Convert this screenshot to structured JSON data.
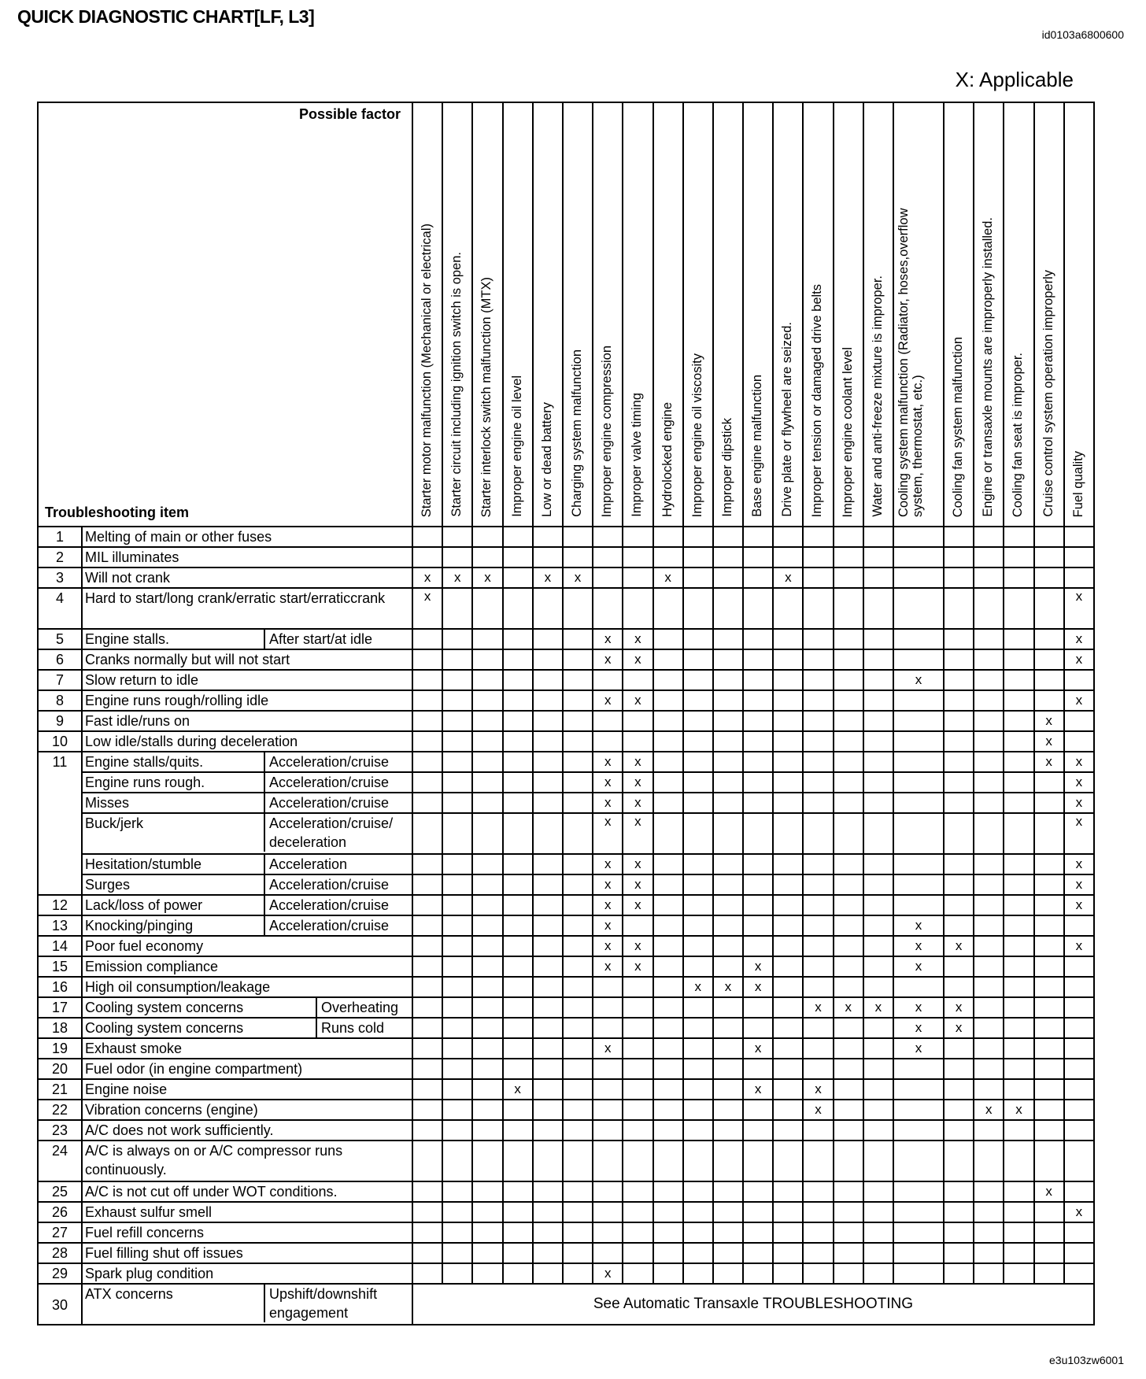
{
  "title": "QUICK DIAGNOSTIC CHART[LF, L3]",
  "doc_id": "id0103a6800600",
  "legend": "X: Applicable",
  "figure_id": "e3u103zw6001",
  "mark": "x",
  "header": {
    "possible_factor": "Possible factor",
    "troubleshooting_item": "Troubleshooting item"
  },
  "factors": [
    "Starter motor malfunction (Mechanical or electrical)",
    "Starter circuit including ignition switch is open.",
    "Starter interlock switch malfunction (MTX)",
    "Improper engine oil level",
    "Low or dead battery",
    "Charging system malfunction",
    "Improper engine compression",
    "Improper valve timing",
    "Hydrolocked engine",
    "Improper engine oil viscosity",
    "Improper dipstick",
    "Base engine malfunction",
    "Drive plate or flywheel are seized.",
    "Improper tension or damaged drive belts",
    "Improper engine coolant level",
    "Water and anti-freeze mixture is improper.",
    "Cooling system malfunction (Radiator, hoses,overflow system, thermostat, etc.)",
    "Cooling fan system malfunction",
    "Engine or transaxle mounts are improperly installed.",
    "Cooling fan seat is improper.",
    "Cruise control system operation improperly",
    "Fuel quality"
  ],
  "rows": [
    {
      "num": "1",
      "item": "Melting of main or other fuses",
      "sub": "",
      "marks": []
    },
    {
      "num": "2",
      "item": "MIL illuminates",
      "sub": "",
      "marks": []
    },
    {
      "num": "3",
      "item": "Will not crank",
      "sub": "",
      "marks": [
        0,
        1,
        2,
        4,
        5,
        8,
        12
      ]
    },
    {
      "num": "4",
      "item": "Hard to start/long crank/erratic start/erraticcrank",
      "sub": "",
      "marks": [
        0,
        21
      ]
    },
    {
      "num": "5",
      "item": "Engine stalls.",
      "sub": "After start/at idle",
      "marks": [
        6,
        7,
        21
      ]
    },
    {
      "num": "6",
      "item": "Cranks normally but will not start",
      "sub": "",
      "marks": [
        6,
        7,
        21
      ]
    },
    {
      "num": "7",
      "item": "Slow return to idle",
      "sub": "",
      "marks": [
        16
      ]
    },
    {
      "num": "8",
      "item": "Engine runs rough/rolling idle",
      "sub": "",
      "marks": [
        6,
        7,
        21
      ]
    },
    {
      "num": "9",
      "item": "Fast idle/runs on",
      "sub": "",
      "marks": [
        20
      ]
    },
    {
      "num": "10",
      "item": "Low idle/stalls during deceleration",
      "sub": "",
      "marks": [
        20
      ]
    },
    {
      "num": "11",
      "item": "Engine stalls/quits.",
      "sub": "Acceleration/cruise",
      "marks": [
        6,
        7,
        20,
        21
      ]
    },
    {
      "num": "",
      "item": "Engine runs rough.",
      "sub": "Acceleration/cruise",
      "marks": [
        6,
        7,
        21
      ]
    },
    {
      "num": "",
      "item": "Misses",
      "sub": "Acceleration/cruise",
      "marks": [
        6,
        7,
        21
      ]
    },
    {
      "num": "",
      "item": "Buck/jerk",
      "sub": "Acceleration/cruise/ deceleration",
      "marks": [
        6,
        7,
        21
      ]
    },
    {
      "num": "",
      "item": "Hesitation/stumble",
      "sub": "Acceleration",
      "marks": [
        6,
        7,
        21
      ]
    },
    {
      "num": "",
      "item": "Surges",
      "sub": "Acceleration/cruise",
      "marks": [
        6,
        7,
        21
      ]
    },
    {
      "num": "12",
      "item": "Lack/loss of power",
      "sub": "Acceleration/cruise",
      "marks": [
        6,
        7,
        21
      ]
    },
    {
      "num": "13",
      "item": "Knocking/pinging",
      "sub": "Acceleration/cruise",
      "marks": [
        6,
        16
      ]
    },
    {
      "num": "14",
      "item": "Poor fuel economy",
      "sub": "",
      "marks": [
        6,
        7,
        16,
        17,
        21
      ]
    },
    {
      "num": "15",
      "item": "Emission compliance",
      "sub": "",
      "marks": [
        6,
        7,
        11,
        16
      ]
    },
    {
      "num": "16",
      "item": "High oil consumption/leakage",
      "sub": "",
      "marks": [
        9,
        10,
        11
      ]
    },
    {
      "num": "17",
      "item": "Cooling system concerns",
      "sub": "Overheating",
      "marks": [
        13,
        14,
        15,
        16,
        17
      ]
    },
    {
      "num": "18",
      "item": "Cooling system concerns",
      "sub": "Runs cold",
      "marks": [
        16,
        17
      ]
    },
    {
      "num": "19",
      "item": "Exhaust smoke",
      "sub": "",
      "marks": [
        6,
        11,
        16
      ]
    },
    {
      "num": "20",
      "item": "Fuel odor (in engine compartment)",
      "sub": "",
      "marks": []
    },
    {
      "num": "21",
      "item": "Engine noise",
      "sub": "",
      "marks": [
        3,
        11,
        13
      ]
    },
    {
      "num": "22",
      "item": "Vibration concerns (engine)",
      "sub": "",
      "marks": [
        13,
        18,
        19
      ]
    },
    {
      "num": "23",
      "item": "A/C does not work sufficiently.",
      "sub": "",
      "marks": []
    },
    {
      "num": "24",
      "item": "A/C is always on or A/C compressor runs continuously.",
      "sub": "",
      "marks": []
    },
    {
      "num": "25",
      "item": "A/C is not cut off under WOT conditions.",
      "sub": "",
      "marks": [
        20
      ]
    },
    {
      "num": "26",
      "item": "Exhaust sulfur smell",
      "sub": "",
      "marks": [
        21
      ]
    },
    {
      "num": "27",
      "item": "Fuel refill concerns",
      "sub": "",
      "marks": []
    },
    {
      "num": "28",
      "item": "Fuel filling shut off issues",
      "sub": "",
      "marks": []
    },
    {
      "num": "29",
      "item": "Spark plug condition",
      "sub": "",
      "marks": [
        6
      ]
    },
    {
      "num": "30",
      "item": "ATX concerns",
      "sub": "Upshift/downshift engagement",
      "marks": [],
      "see": "See Automatic Transaxle TROUBLESHOOTING"
    }
  ]
}
